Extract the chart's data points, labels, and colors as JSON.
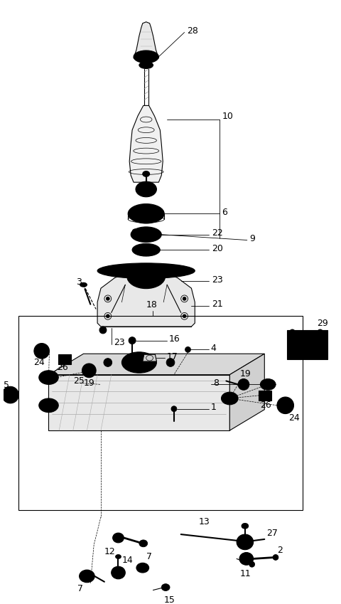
{
  "bg_color": "#ffffff",
  "line_color": "#000000",
  "gray": "#888888",
  "darkgray": "#555555",
  "figsize": [
    4.8,
    8.49
  ],
  "dpi": 100
}
